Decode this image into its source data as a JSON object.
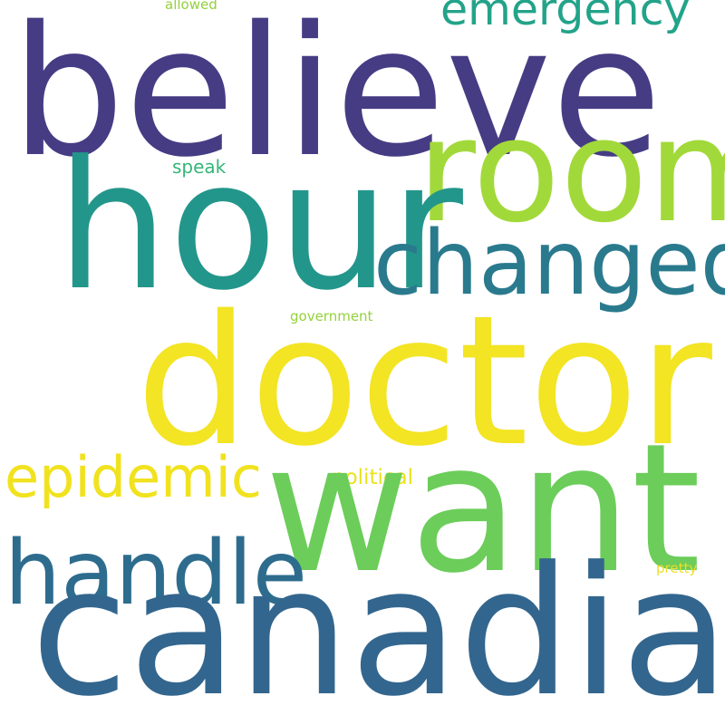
{
  "wordcloud": {
    "background": "#ffffff",
    "words": {
      "believe": {
        "text": "believe",
        "color": "#463c84"
      },
      "emergency": {
        "text": "emergency",
        "color": "#23a389"
      },
      "allowed": {
        "text": "allowed",
        "color": "#93d03e"
      },
      "room": {
        "text": "room",
        "color": "#a2d93a"
      },
      "hour": {
        "text": "hour",
        "color": "#23968b"
      },
      "changed": {
        "text": "changed",
        "color": "#2a7a8e"
      },
      "speak": {
        "text": "speak",
        "color": "#34b679"
      },
      "government": {
        "text": "government",
        "color": "#95d13c"
      },
      "doctor": {
        "text": "doctor",
        "color": "#f3e424"
      },
      "epidemic": {
        "text": "epidemic",
        "color": "#f1e21f"
      },
      "political": {
        "text": "political",
        "color": "#e8e31e"
      },
      "want": {
        "text": "want",
        "color": "#6ccd5a"
      },
      "handle": {
        "text": "handle",
        "color": "#2e6c8e"
      },
      "pretty": {
        "text": "pretty",
        "color": "#ecdf29"
      },
      "canadian": {
        "text": "canadian",
        "color": "#33668e"
      }
    }
  }
}
